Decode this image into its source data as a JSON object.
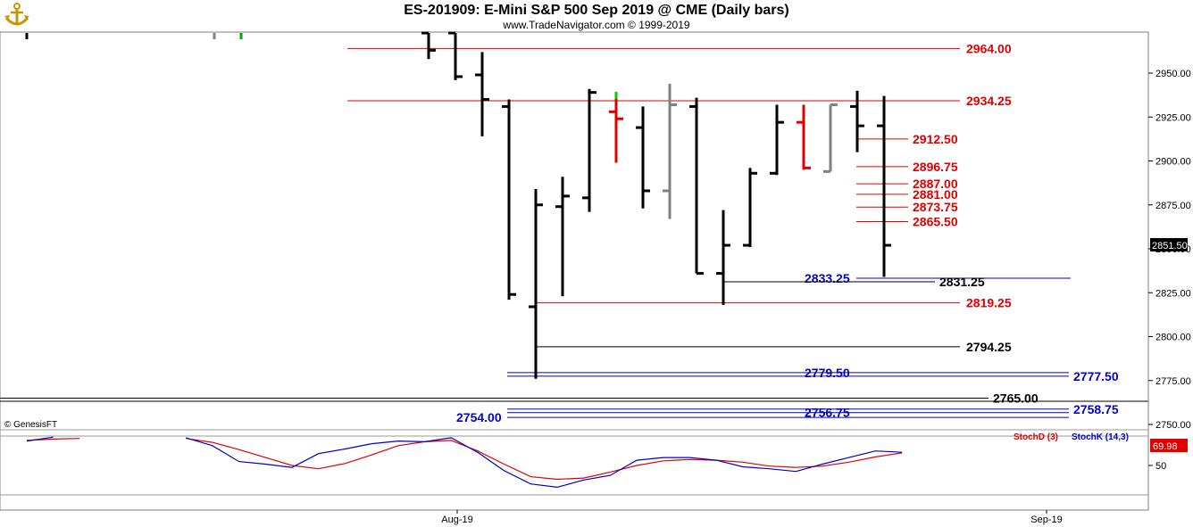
{
  "header": {
    "title": "ES-201909:  E-Mini S&P 500 Sep 2019 @ CME  (Daily bars)",
    "subtitle": "www.TradeNavigator.com © 1999-2019"
  },
  "lower_panel": {
    "copyright": "© GenesisFT",
    "legend_d": "StochD (3)",
    "legend_k": "StochK (14,3)",
    "last_value": "69.98",
    "tick_50": "50"
  },
  "price_panel": {
    "last_price": "2851.50"
  },
  "colors": {
    "up_bar": "#000000",
    "down_red": "#e00000",
    "gray_bar": "#808080",
    "red_level": "#e00000",
    "blue_level": "#0000cc",
    "black_level": "#000000",
    "stoch_k": "#0000cc",
    "stoch_d": "#e00000"
  },
  "chart_data": [
    {
      "type": "ohlc",
      "title": "ES-201909:  E-Mini S&P 500 Sep 2019 @ CME  (Daily bars)",
      "ylim": [
        2740,
        2975
      ],
      "yticks": [
        2750,
        2775,
        2800,
        2825,
        2850,
        2875,
        2900,
        2925,
        2950
      ],
      "ytick_labels": [
        "2750.00",
        "2775.00",
        "2800.00",
        "2825.00",
        "2850.00",
        "2875.00",
        "2900.00",
        "2925.00",
        "2950.00"
      ],
      "xtick_labels": [
        "Aug-19",
        "Sep-19"
      ],
      "last_price": 2851.5,
      "bars": [
        {
          "o": 2973,
          "h": 2975,
          "l": 2958,
          "c": 2963,
          "color": "black"
        },
        {
          "o": 2973,
          "h": 2974,
          "l": 2946,
          "c": 2948,
          "color": "black"
        },
        {
          "o": 2949,
          "h": 2962,
          "l": 2914,
          "c": 2935,
          "color": "black"
        },
        {
          "o": 2931,
          "h": 2935,
          "l": 2821,
          "c": 2824,
          "color": "black"
        },
        {
          "o": 2817,
          "h": 2884,
          "l": 2776,
          "c": 2875,
          "color": "black"
        },
        {
          "o": 2874,
          "h": 2891,
          "l": 2823,
          "c": 2880,
          "color": "black"
        },
        {
          "o": 2879,
          "h": 2941,
          "l": 2871,
          "c": 2939,
          "color": "black"
        },
        {
          "o": 2928,
          "h": 2938,
          "l": 2899,
          "c": 2924,
          "color": "red"
        },
        {
          "o": 2919,
          "h": 2931,
          "l": 2873,
          "c": 2883,
          "color": "black"
        },
        {
          "o": 2883,
          "h": 2944,
          "l": 2867,
          "c": 2932,
          "color": "gray"
        },
        {
          "o": 2931,
          "h": 2936,
          "l": 2836,
          "c": 2836,
          "color": "black"
        },
        {
          "o": 2836,
          "h": 2872,
          "l": 2818,
          "c": 2852,
          "color": "black"
        },
        {
          "o": 2852,
          "h": 2896,
          "l": 2851,
          "c": 2893,
          "color": "black"
        },
        {
          "o": 2893,
          "h": 2932,
          "l": 2892,
          "c": 2922,
          "color": "black"
        },
        {
          "o": 2922,
          "h": 2932,
          "l": 2895,
          "c": 2896,
          "color": "red"
        },
        {
          "o": 2894,
          "h": 2932,
          "l": 2894,
          "c": 2932,
          "color": "gray"
        },
        {
          "o": 2931,
          "h": 2940,
          "l": 2905,
          "c": 2920,
          "color": "black"
        },
        {
          "o": 2920,
          "h": 2937,
          "l": 2834,
          "c": 2852,
          "color": "black"
        }
      ],
      "levels": [
        {
          "value": 2964.0,
          "label": "2964.00",
          "color": "red"
        },
        {
          "value": 2934.25,
          "label": "2934.25",
          "color": "red"
        },
        {
          "value": 2912.5,
          "label": "2912.50",
          "color": "red"
        },
        {
          "value": 2896.75,
          "label": "2896.75",
          "color": "red"
        },
        {
          "value": 2887.0,
          "label": "2887.00",
          "color": "red"
        },
        {
          "value": 2881.0,
          "label": "2881.00",
          "color": "red"
        },
        {
          "value": 2873.75,
          "label": "2873.75",
          "color": "red"
        },
        {
          "value": 2865.5,
          "label": "2865.50",
          "color": "red"
        },
        {
          "value": 2833.25,
          "label": "2833.25",
          "color": "blue"
        },
        {
          "value": 2831.25,
          "label": "2831.25",
          "color": "black"
        },
        {
          "value": 2819.25,
          "label": "2819.25",
          "color": "red"
        },
        {
          "value": 2794.25,
          "label": "2794.25",
          "color": "black"
        },
        {
          "value": 2779.5,
          "label": "2779.50",
          "color": "blue"
        },
        {
          "value": 2777.5,
          "label": "2777.50",
          "color": "blue"
        },
        {
          "value": 2765.0,
          "label": "2765.00",
          "color": "black"
        },
        {
          "value": 2758.75,
          "label": "2758.75",
          "color": "blue"
        },
        {
          "value": 2756.75,
          "label": "2756.75",
          "color": "blue"
        },
        {
          "value": 2754.0,
          "label": "2754.00",
          "color": "blue"
        }
      ]
    },
    {
      "type": "line",
      "title": "",
      "ylim": [
        25,
        100
      ],
      "yticks": [
        50
      ],
      "series": [
        {
          "name": "StochD (3)",
          "color": "red",
          "values": [
            88,
            90,
            91,
            null,
            null,
            null,
            91,
            85,
            74,
            62,
            50,
            45,
            53,
            66,
            80,
            86,
            88,
            72,
            52,
            33,
            29,
            31,
            40,
            50,
            57,
            59,
            58,
            55,
            49,
            47,
            49,
            55,
            63,
            69
          ]
        },
        {
          "name": "StochK (14,3)",
          "color": "blue",
          "values": [
            87,
            93,
            null,
            null,
            null,
            null,
            92,
            80,
            56,
            52,
            47,
            68,
            75,
            83,
            87,
            86,
            92,
            70,
            42,
            22,
            17,
            28,
            35,
            58,
            62,
            62,
            58,
            48,
            45,
            41,
            52,
            62,
            72,
            70
          ]
        }
      ]
    }
  ]
}
